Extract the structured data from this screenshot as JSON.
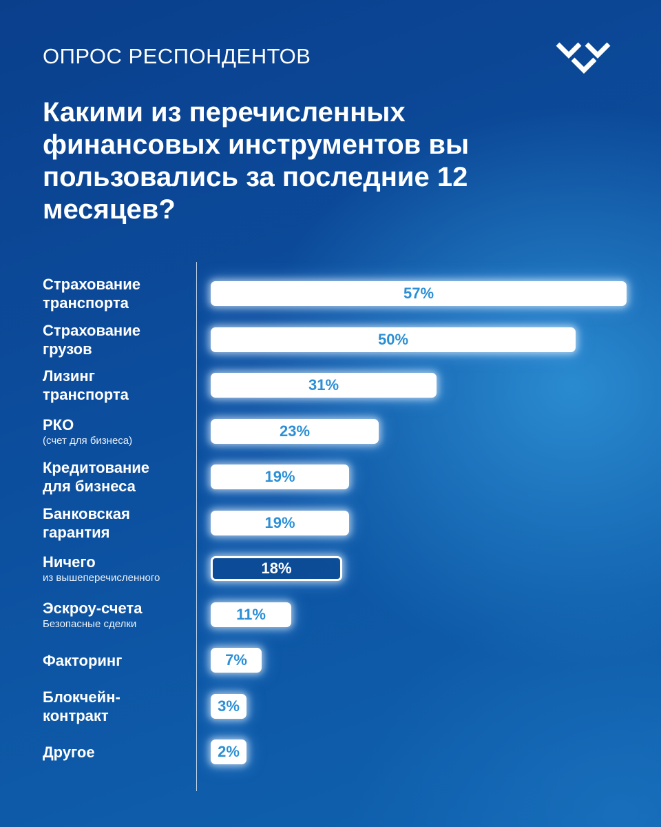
{
  "header": {
    "eyebrow": "ОПРОС РЕСПОНДЕНТОВ",
    "logo_icon": "triple-chevron-logo-icon"
  },
  "chart_data": {
    "type": "bar",
    "orientation": "horizontal",
    "title": "Какими из перечисленных финансовых инструментов вы пользовались за последние 12 месяцев?",
    "value_suffix": "%",
    "xlim": [
      0,
      57
    ],
    "grid": false,
    "categories": [
      "Страхование транспорта",
      "Страхование грузов",
      "Лизинг транспорта",
      "РКО",
      "Кредитование для бизнеса",
      "Банковская гарантия",
      "Ничего",
      "Эскроу-счета",
      "Факторинг",
      "Блокчейн-контракт",
      "Другое"
    ],
    "values": [
      57,
      50,
      31,
      23,
      19,
      19,
      18,
      11,
      7,
      3,
      2
    ],
    "bar_labels": [
      "57%",
      "50%",
      "31%",
      "23%",
      "19%",
      "19%",
      "18%",
      "11%",
      "7%",
      "3%",
      "2%"
    ],
    "items": [
      {
        "line1": "Страхование",
        "line2": "транспорта",
        "sub": "",
        "outline": false
      },
      {
        "line1": "Страхование",
        "line2": "грузов",
        "sub": "",
        "outline": false
      },
      {
        "line1": "Лизинг",
        "line2": "транспорта",
        "sub": "",
        "outline": false
      },
      {
        "line1": "РКО",
        "line2": "",
        "sub": "(счет для бизнеса)",
        "outline": false
      },
      {
        "line1": "Кредитование",
        "line2": "для бизнеса",
        "sub": "",
        "outline": false
      },
      {
        "line1": "Банковская",
        "line2": "гарантия",
        "sub": "",
        "outline": false
      },
      {
        "line1": "Ничего",
        "line2": "",
        "sub": "из вышеперечисленного",
        "outline": true
      },
      {
        "line1": "Эскроу-счета",
        "line2": "",
        "sub": "Безопасные сделки",
        "outline": false
      },
      {
        "line1": "Факторинг",
        "line2": "",
        "sub": "",
        "outline": false
      },
      {
        "line1": "Блокчейн-",
        "line2": "контракт",
        "sub": "",
        "outline": false
      },
      {
        "line1": "Другое",
        "line2": "",
        "sub": "",
        "outline": false
      }
    ],
    "colors": {
      "bar_fill": "#ffffff",
      "bar_text": "#2b8fd6",
      "background_dark": "#0a3f8c",
      "background_light": "#2f9de0"
    }
  }
}
